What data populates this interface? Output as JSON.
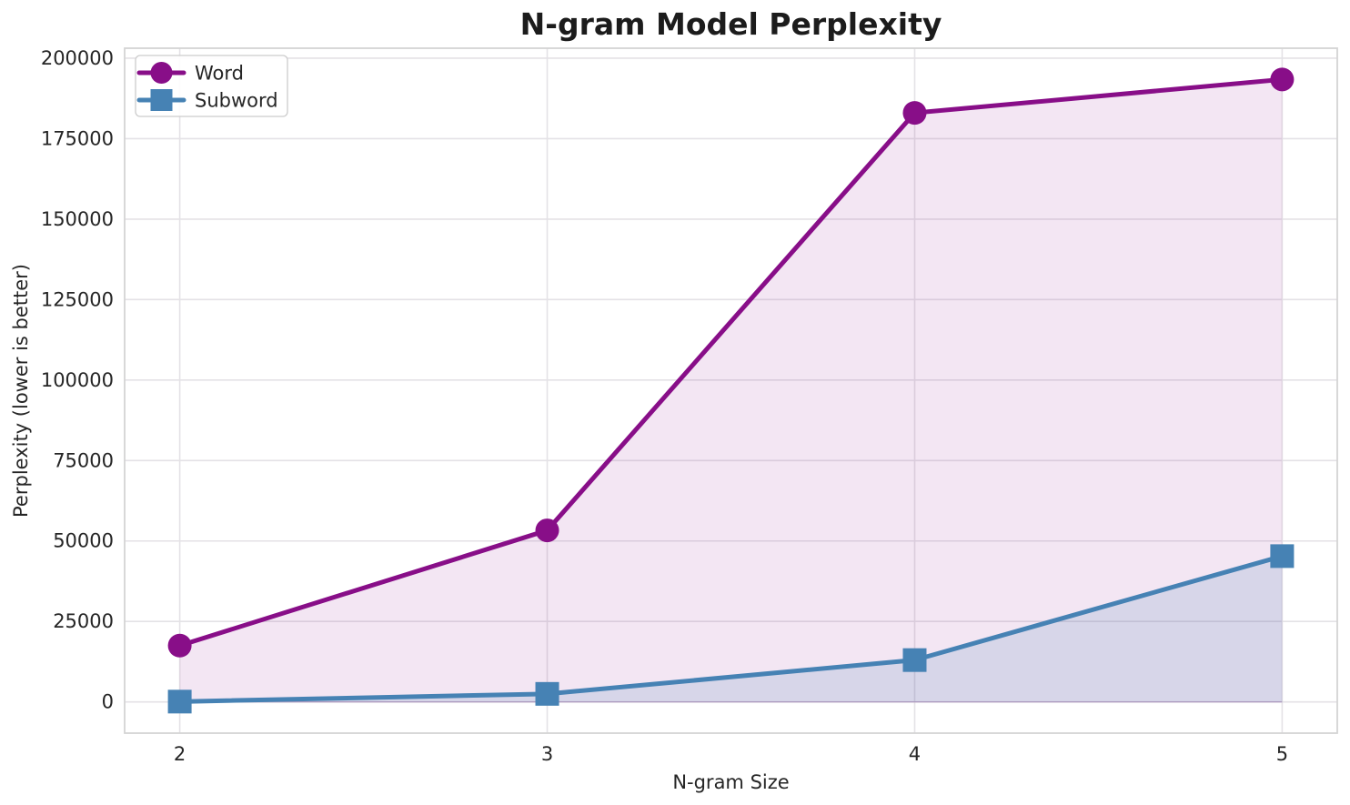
{
  "title": "N-gram Model Perplexity",
  "colors": {
    "word": "#880e88",
    "subword": "#4682b4",
    "word_fill": "rgba(136,14,136,0.10)",
    "subword_fill": "rgba(70,130,180,0.16)",
    "gridline": "#e4e2e6",
    "spine": "#d4d4d4",
    "tick_text": "#262626",
    "title_text": "#1c1c1c",
    "legend_border": "#cccccc",
    "legend_bg": "#ffffff",
    "zero_edge": "rgba(110,60,140,0.35)"
  },
  "chart_data": {
    "type": "line",
    "title": "N-gram Model Perplexity",
    "xlabel": "N-gram Size",
    "ylabel": "Perplexity (lower is better)",
    "x": [
      2,
      3,
      4,
      5
    ],
    "series": [
      {
        "name": "Word",
        "marker": "circle",
        "color": "#880e88",
        "fill": "rgba(136,14,136,0.10)",
        "values": [
          17500,
          53300,
          183000,
          193400
        ]
      },
      {
        "name": "Subword",
        "marker": "square",
        "color": "#4682b4",
        "fill": "rgba(70,130,180,0.16)",
        "values": [
          100,
          2500,
          13000,
          45300
        ]
      }
    ],
    "xticks": [
      2,
      3,
      4,
      5
    ],
    "xtick_labels": [
      "2",
      "3",
      "4",
      "5"
    ],
    "yticks": [
      0,
      25000,
      50000,
      75000,
      100000,
      125000,
      150000,
      175000,
      200000
    ],
    "ytick_labels": [
      "0",
      "25000",
      "50000",
      "75000",
      "100000",
      "125000",
      "150000",
      "175000",
      "200000"
    ],
    "xlim": [
      1.85,
      5.15
    ],
    "ylim": [
      -9700,
      203100
    ],
    "grid": true,
    "fill_to_zero": true,
    "legend_position": "upper left",
    "legend_labels": [
      "Word",
      "Subword"
    ]
  }
}
